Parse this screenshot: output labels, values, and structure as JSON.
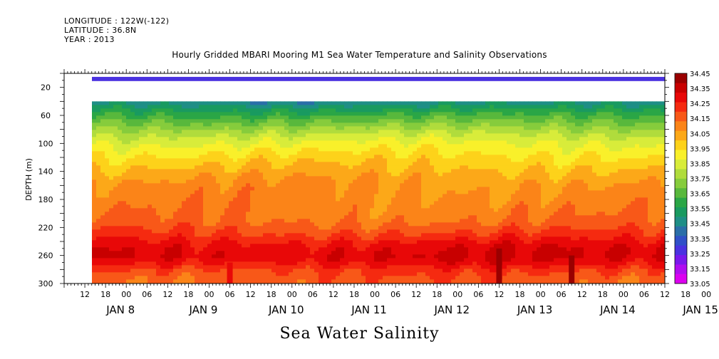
{
  "header": {
    "longitude": "LONGITUDE : 122W(-122)",
    "latitude": "LATITUDE : 36.8N",
    "year": "YEAR : 2013"
  },
  "chart_data": {
    "type": "heatmap",
    "title": "Hourly Gridded MBARI Mooring M1 Sea Water Temperature and Salinity Observations",
    "xlabel": "Sea Water Salinity",
    "ylabel": "DEPTH (m)",
    "ylim": [
      300,
      0
    ],
    "xlim_hours": [
      "JAN 8 06:00",
      "JAN 15 12:00"
    ],
    "y_ticks": [
      20,
      60,
      100,
      140,
      180,
      220,
      260,
      300
    ],
    "x_hour_ticks": [
      "12",
      "18",
      "00",
      "06",
      "12",
      "18",
      "00",
      "06",
      "12",
      "18",
      "00",
      "06",
      "12",
      "18",
      "00",
      "06",
      "12",
      "18",
      "00",
      "06",
      "12",
      "18",
      "00",
      "06",
      "12",
      "18",
      "00",
      "06",
      "12",
      "18",
      "00",
      "06"
    ],
    "x_day_labels": [
      "JAN  8",
      "JAN  9",
      "JAN 10",
      "JAN 11",
      "JAN 12",
      "JAN 13",
      "JAN 14",
      "JAN 15"
    ],
    "colorbar": {
      "labels": [
        "34.45",
        "34.35",
        "34.25",
        "34.15",
        "34.05",
        "33.95",
        "33.85",
        "33.75",
        "33.65",
        "33.55",
        "33.45",
        "33.35",
        "33.25",
        "33.15",
        "33.05"
      ],
      "colors": [
        "#9a0000",
        "#c80000",
        "#e80808",
        "#f52a10",
        "#f85818",
        "#fb8418",
        "#fca818",
        "#fdd21a",
        "#f9f02a",
        "#d8ec3a",
        "#b0dc3c",
        "#86cc3c",
        "#58b83c",
        "#2aa646",
        "#199a60",
        "#1e8e86",
        "#2a6ea8",
        "#3050c8",
        "#4a32e0",
        "#7a18ec",
        "#b00cf0",
        "#dc00f0"
      ],
      "range": [
        33.05,
        34.45
      ]
    },
    "data_start_depth_m": 40,
    "surface_band": {
      "depth_m": [
        5,
        11
      ],
      "salinity": 33.3
    },
    "depth_levels_m": [
      40,
      50,
      60,
      70,
      80,
      90,
      100,
      110,
      120,
      130,
      140,
      150,
      160,
      180,
      200,
      210,
      220,
      230,
      240,
      250,
      260,
      270,
      280,
      290,
      300
    ],
    "salinity_profile": [
      33.47,
      33.56,
      33.64,
      33.71,
      33.78,
      33.84,
      33.89,
      33.93,
      33.97,
      34.0,
      34.03,
      34.06,
      34.08,
      34.1,
      34.12,
      34.14,
      34.18,
      34.22,
      34.28,
      34.31,
      34.32,
      34.27,
      34.2,
      34.17,
      34.15
    ],
    "spikes": [
      {
        "time": "JAN 10 06:00",
        "depth_m": [
          270,
          300
        ],
        "salinity": 34.3
      },
      {
        "time": "JAN 13 12:00",
        "depth_m": [
          250,
          300
        ],
        "salinity": 34.44
      },
      {
        "time": "JAN 14 09:00",
        "depth_m": [
          260,
          300
        ],
        "salinity": 34.4
      }
    ]
  }
}
